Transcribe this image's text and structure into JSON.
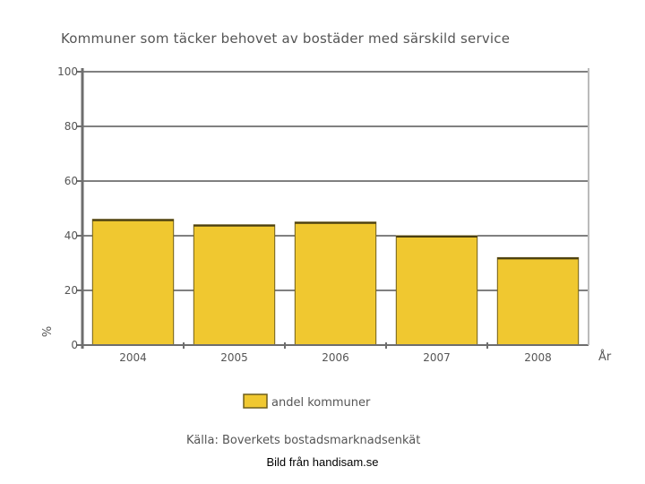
{
  "chart_data": {
    "type": "bar",
    "title": "Kommuner som täcker behovet av bostäder med särskild service",
    "xlabel": "År",
    "ylabel": "%",
    "categories": [
      "2004",
      "2005",
      "2006",
      "2007",
      "2008"
    ],
    "series": [
      {
        "name": "andel kommuner",
        "values": [
          46,
          44,
          45,
          40,
          32
        ]
      }
    ],
    "ylim": [
      0,
      100
    ],
    "yticks": [
      0,
      20,
      40,
      60,
      80,
      100
    ],
    "grid": true,
    "legend_position": "bottom",
    "colors": {
      "bar": "#f0c830",
      "bar_edge": "#6e5e1c",
      "grid": "#000000",
      "axis": "#6e6e6e",
      "text": "#555555"
    }
  },
  "source_text": "Källa: Boverkets bostadsmarknadsenkät",
  "credit_text": "Bild från handisam.se"
}
